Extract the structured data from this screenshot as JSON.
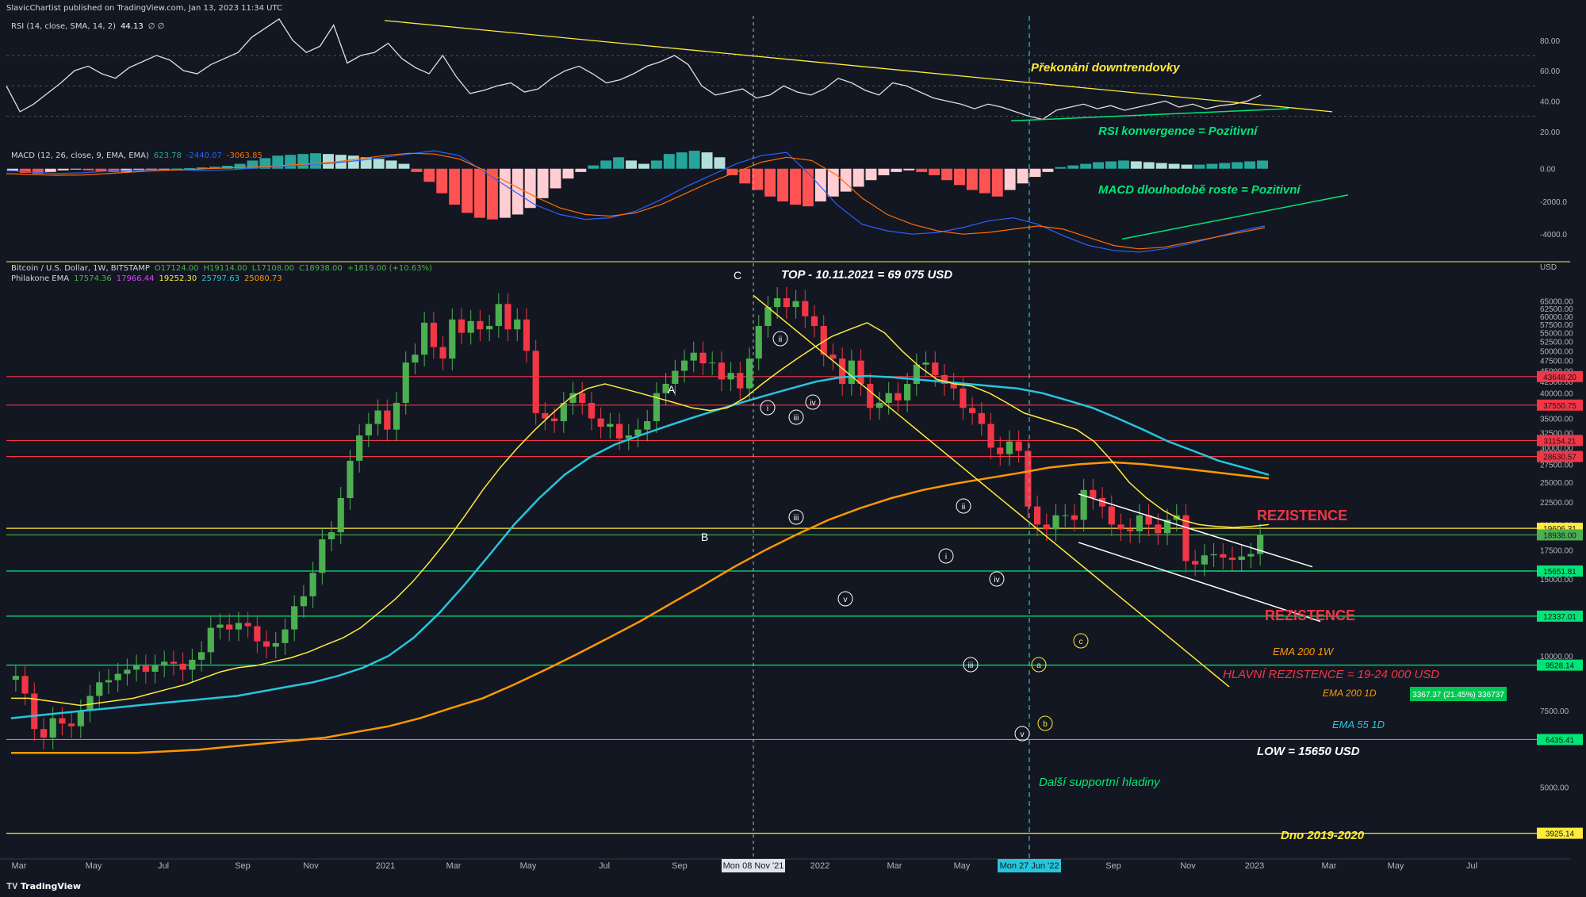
{
  "header": {
    "published": "SlavicChartist published on TradingView.com, Jan 13, 2023 11:34 UTC"
  },
  "footer": {
    "brand": "TradingView"
  },
  "colors": {
    "bg": "#131722",
    "up": "#4caf50",
    "down": "#f23645",
    "yellow": "#ffeb3b",
    "orange": "#ff9800",
    "cyan": "#26c6da",
    "green": "#00e676",
    "white": "#ffffff",
    "red": "#f23645"
  },
  "rsi_legend": {
    "title": "RSI (14, close, SMA, 14, 2)",
    "value": "44.13",
    "extra": "∅ ∅"
  },
  "macd_legend": {
    "title": "MACD (12, 26, close, 9, EMA, EMA)",
    "v1": "623.78",
    "v2": "-2440.07",
    "v3": "-3063.85"
  },
  "price_legend": {
    "title": "Bitcoin / U.S. Dollar, 1W, BITSTAMP",
    "o": "O17124.00",
    "h": "H19114.00",
    "l": "L17108.00",
    "c": "C18938.00",
    "chg": "+1819.00 (+10.63%)"
  },
  "ema_legend": {
    "title": "Philakone EMA",
    "v1": "17574.36",
    "v2": "17966.44",
    "v3": "19252.30",
    "v4": "25797.63",
    "v5": "25080.73"
  },
  "chart_data": [
    {
      "type": "line",
      "name": "rsi",
      "y_ticks": [
        "80.00",
        "60.00",
        "40.00",
        "20.00"
      ],
      "y_tick_values": [
        80,
        60,
        40,
        20
      ],
      "ylim": [
        10,
        95
      ],
      "values": [
        50,
        33,
        38,
        45,
        52,
        60,
        63,
        58,
        55,
        62,
        66,
        70,
        67,
        60,
        58,
        64,
        68,
        72,
        82,
        88,
        94,
        80,
        72,
        76,
        90,
        65,
        70,
        72,
        78,
        68,
        62,
        58,
        70,
        56,
        45,
        47,
        50,
        52,
        46,
        48,
        55,
        60,
        63,
        58,
        52,
        54,
        58,
        63,
        66,
        70,
        64,
        50,
        44,
        46,
        48,
        42,
        44,
        50,
        46,
        44,
        48,
        55,
        52,
        47,
        44,
        52,
        50,
        46,
        42,
        40,
        38,
        35,
        38,
        36,
        33,
        30,
        28,
        34,
        36,
        38,
        35,
        37,
        34,
        36,
        38,
        40,
        36,
        38,
        35,
        37,
        38,
        40,
        44
      ],
      "annotations": [
        "Překonání downtrendovky",
        "RSI konvergence = Pozitivní"
      ]
    },
    {
      "type": "bar",
      "name": "macd",
      "y_ticks": [
        "0.00",
        "-2000.0",
        "-4000.0"
      ],
      "y_tick_values": [
        0,
        -2000,
        -4000
      ],
      "ylim": [
        -5300,
        1200
      ],
      "histogram": [
        -150,
        -250,
        -300,
        -200,
        -100,
        -50,
        -100,
        -150,
        -200,
        -180,
        -120,
        -60,
        -20,
        10,
        40,
        80,
        120,
        180,
        300,
        500,
        650,
        800,
        850,
        900,
        950,
        900,
        850,
        800,
        700,
        600,
        500,
        300,
        -200,
        -800,
        -1500,
        -2200,
        -2700,
        -3000,
        -3100,
        -3000,
        -2800,
        -2400,
        -1800,
        -1200,
        -600,
        -200,
        200,
        500,
        700,
        500,
        300,
        500,
        900,
        1000,
        1100,
        1000,
        700,
        -400,
        -900,
        -1300,
        -1700,
        -2000,
        -2200,
        -2300,
        -2000,
        -1700,
        -1400,
        -1100,
        -700,
        -400,
        -200,
        -100,
        -200,
        -400,
        -700,
        -1000,
        -1300,
        -1500,
        -1700,
        -1300,
        -900,
        -500,
        -200,
        100,
        200,
        300,
        400,
        450,
        500,
        450,
        400,
        350,
        300,
        250,
        250,
        300,
        350,
        400,
        450,
        500
      ],
      "macd_line": [
        -100,
        -200,
        -300,
        -250,
        -150,
        -80,
        -60,
        -80,
        -100,
        -50,
        50,
        150,
        250,
        350,
        500,
        700,
        900,
        1100,
        800,
        -200,
        -1200,
        -2200,
        -2800,
        -3100,
        -3000,
        -2600,
        -1900,
        -1100,
        -400,
        300,
        800,
        1000,
        -500,
        -2200,
        -3400,
        -3800,
        -4000,
        -3900,
        -3600,
        -3200,
        -3000,
        -3400,
        -4100,
        -4700,
        -5000,
        -5100,
        -4900,
        -4600,
        -4200,
        -3800,
        -3500
      ],
      "signal_line": [
        -300,
        -350,
        -400,
        -380,
        -300,
        -200,
        -120,
        -60,
        0,
        60,
        120,
        200,
        300,
        400,
        600,
        800,
        950,
        900,
        600,
        -100,
        -900,
        -1700,
        -2400,
        -2800,
        -2900,
        -2700,
        -2200,
        -1500,
        -800,
        -200,
        400,
        700,
        500,
        -400,
        -1800,
        -2800,
        -3400,
        -3800,
        -4000,
        -3900,
        -3700,
        -3500,
        -3700,
        -4200,
        -4700,
        -4900,
        -4800,
        -4500,
        -4200,
        -3900,
        -3600
      ],
      "annotations": [
        "MACD dlouhodobě roste = Pozitivní"
      ]
    },
    {
      "type": "candlestick",
      "name": "btc_usd_weekly",
      "title": "Bitcoin / U.S. Dollar, 1W, BITSTAMP",
      "y_scale": "log",
      "ylim": [
        3500,
        80000
      ],
      "y_ticks": [
        5000,
        7500,
        10000,
        12500,
        15000,
        17500,
        20000,
        22500,
        25000,
        27500,
        30000,
        32500,
        35000,
        37500,
        40000,
        42500,
        45000,
        47500,
        50000,
        52500,
        55000,
        57500,
        60000,
        62500,
        65000
      ],
      "y_tick_labels": [
        "5000.00",
        "7500.00",
        "10000.00",
        "12500.00",
        "15000.00",
        "17500.00",
        "20000.00",
        "22500.00",
        "25000.00",
        "27500.00",
        "30000.00",
        "32500.00",
        "35000.00",
        "37500.00",
        "40000.00",
        "42500.00",
        "45000.00",
        "47500.00",
        "50000.00",
        "52500.00",
        "55000.00",
        "57500.00",
        "60000.00",
        "62500.00",
        "65000.00"
      ],
      "x_labels": [
        "Mar",
        "May",
        "Jul",
        "Sep",
        "Nov",
        "2021",
        "Mar",
        "May",
        "Jul",
        "Sep",
        "Mon 08 Nov '21",
        "2022",
        "Mar",
        "May",
        "Mon 27 Jun '22",
        "Sep",
        "Nov",
        "2023",
        "Mar",
        "May",
        "Jul"
      ],
      "closes": [
        9000,
        8200,
        6800,
        6500,
        7200,
        7000,
        6900,
        7500,
        8100,
        8700,
        8800,
        9100,
        9300,
        9500,
        9200,
        9500,
        9700,
        9600,
        9300,
        9800,
        10200,
        11600,
        11800,
        11500,
        11900,
        11700,
        10800,
        10500,
        10700,
        11500,
        13000,
        13700,
        15500,
        18500,
        19200,
        23000,
        28000,
        32000,
        34000,
        36500,
        33000,
        38000,
        47000,
        49000,
        58000,
        51000,
        48000,
        59000,
        55000,
        58500,
        56000,
        57000,
        64000,
        56000,
        59000,
        50000,
        36000,
        35000,
        34500,
        38000,
        40000,
        38000,
        35000,
        33500,
        34000,
        31500,
        32000,
        33000,
        34500,
        40000,
        42000,
        45000,
        47500,
        49500,
        46800,
        47000,
        43000,
        44500,
        41000,
        48000,
        57000,
        63000,
        66000,
        63000,
        65000,
        60000,
        57000,
        49000,
        48000,
        42000,
        47500,
        42000,
        37000,
        38000,
        40000,
        38500,
        42000,
        46500,
        47000,
        44000,
        42000,
        41000,
        37000,
        36000,
        34000,
        30000,
        29000,
        31000,
        29500,
        22000,
        20000,
        19500,
        21000,
        21000,
        20500,
        24000,
        23000,
        22000,
        20000,
        19500,
        19300,
        21000,
        20000,
        19100,
        20500,
        21000,
        16500,
        16200,
        17000,
        17100,
        16800,
        16600,
        16900,
        17124,
        18938
      ],
      "ema_yellow": [
        8000,
        8000,
        7900,
        7800,
        7700,
        7800,
        7900,
        8000,
        8200,
        8400,
        8600,
        8900,
        9200,
        9400,
        9500,
        9700,
        9900,
        10200,
        10600,
        11000,
        11600,
        12500,
        13500,
        14800,
        16500,
        18500,
        21000,
        24000,
        27000,
        30000,
        33000,
        36000,
        39000,
        41000,
        42000,
        41000,
        40000,
        39000,
        38000,
        37000,
        36500,
        37000,
        39000,
        42000,
        45000,
        48000,
        51000,
        54000,
        56000,
        58000,
        55000,
        50000,
        46000,
        43000,
        42000,
        41500,
        40000,
        38000,
        36000,
        35000,
        34000,
        33000,
        31000,
        28000,
        25000,
        23000,
        21500,
        20500,
        20000,
        19800,
        19700,
        19800,
        20000
      ],
      "ema_cyan": [
        7200,
        7300,
        7400,
        7500,
        7600,
        7700,
        7800,
        7900,
        8000,
        8100,
        8300,
        8500,
        8700,
        9000,
        9400,
        10000,
        11000,
        12500,
        14500,
        17000,
        20000,
        23000,
        26000,
        28500,
        30500,
        32000,
        33500,
        35000,
        36500,
        38000,
        39500,
        41000,
        42500,
        43500,
        43800,
        43500,
        43000,
        42500,
        42000,
        41500,
        41000,
        40000,
        38500,
        37000,
        35000,
        33000,
        31000,
        29500,
        28000,
        27000,
        26000
      ],
      "ema_orange": [
        6000,
        6000,
        6000,
        6000,
        6000,
        6050,
        6100,
        6200,
        6300,
        6400,
        6500,
        6700,
        6900,
        7200,
        7600,
        8000,
        8600,
        9300,
        10100,
        11000,
        12000,
        13200,
        14500,
        16000,
        17500,
        19000,
        20500,
        21800,
        23000,
        24000,
        24800,
        25500,
        26200,
        27000,
        27500,
        27800,
        27500,
        27000,
        26500,
        26000,
        25500
      ],
      "levels": [
        {
          "label": "43648.20",
          "color": "#f23645",
          "value": 43648.2
        },
        {
          "label": "37550.75",
          "color": "#f23645",
          "value": 37550.75
        },
        {
          "label": "31154.21",
          "color": "#f23645",
          "value": 31154.21
        },
        {
          "label": "28630.57",
          "color": "#f23645",
          "value": 28630.57
        },
        {
          "label": "19606.31",
          "color": "#ffeb3b",
          "value": 19606.31
        },
        {
          "label": "18938.00",
          "color": "#4caf50",
          "value": 18938.0
        },
        {
          "label": "15651.81",
          "color": "#00e676",
          "value": 15651.81
        },
        {
          "label": "12337.01",
          "color": "#00e676",
          "value": 12337.01
        },
        {
          "label": "9528.14",
          "color": "#00e676",
          "value": 9528.14
        },
        {
          "label": "6435.41",
          "color": "#00e676",
          "value": 6435.41
        },
        {
          "label": "3925.14",
          "color": "#ffeb3b",
          "value": 3925.14
        }
      ],
      "current_price_extra": "2d 13h",
      "measure_label": "3367.37 (21.45%) 336737",
      "annotations": {
        "top": "TOP - 10.11.2021 = 69 075 USD",
        "rez1": "REZISTENCE",
        "rez2": "REZISTENCE",
        "ema200w": "EMA 200 1W",
        "hlavni": "HLAVNÍ REZISTENCE = 19-24 000 USD",
        "ema200d": "EMA 200 1D",
        "ema55d": "EMA 55 1D",
        "low": "LOW = 15650 USD",
        "support": "Další supportní hladiny",
        "dno": "Dno 2019-2020",
        "wave_A": "A",
        "wave_B": "B",
        "wave_C": "C",
        "usd": "USD"
      },
      "wave_labels": [
        "ii",
        "iv",
        "iii",
        "v",
        "i",
        "iii",
        "iv",
        "i",
        "ii",
        "iii",
        "v",
        "a",
        "b",
        "c"
      ]
    }
  ]
}
